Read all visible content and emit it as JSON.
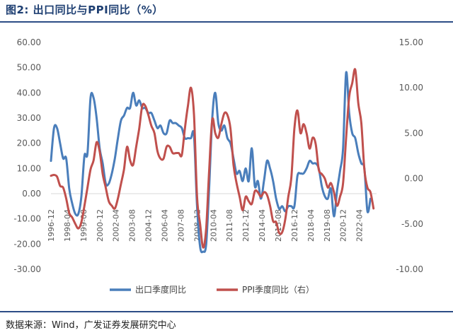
{
  "header": {
    "title": "图2:  出口同比与PPI同比（%）"
  },
  "footer": {
    "source": "数据来源：Wind，广发证券发展研究中心"
  },
  "colors": {
    "export": "#4a7ebb",
    "ppi": "#c0504d",
    "rule": "#2c4d86"
  },
  "chart_data": {
    "type": "line",
    "title": "出口同比与PPI同比（%）",
    "x_ticks": [
      "1996-12",
      "1998-04",
      "1999-08",
      "2000-12",
      "2002-04",
      "2003-08",
      "2004-12",
      "2006-04",
      "2007-08",
      "2008-12",
      "2010-04",
      "2011-08",
      "2012-12",
      "2014-04",
      "2015-08",
      "2016-12",
      "2018-04",
      "2019-08",
      "2020-12",
      "2022-04"
    ],
    "y_left": {
      "ticks": [
        "60.00",
        "50.00",
        "40.00",
        "30.00",
        "20.00",
        "10.00",
        "0.00",
        "-10.00",
        "-20.00",
        "-30.00"
      ],
      "ylim": [
        -30,
        60
      ]
    },
    "y_right": {
      "ticks": [
        "15.00",
        "10.00",
        "5.00",
        "0.00",
        "-5.00",
        "-10.00"
      ],
      "ylim": [
        -10,
        15
      ]
    },
    "legend_position": "bottom",
    "series": [
      {
        "name": "出口季度同比",
        "axis": "left",
        "points": [
          [
            "1996-12",
            13
          ],
          [
            "1997-03",
            26
          ],
          [
            "1997-06",
            26
          ],
          [
            "1997-09",
            20
          ],
          [
            "1997-12",
            14
          ],
          [
            "1998-03",
            14
          ],
          [
            "1998-06",
            2
          ],
          [
            "1998-09",
            -4
          ],
          [
            "1998-12",
            -8
          ],
          [
            "1999-03",
            -8
          ],
          [
            "1999-06",
            -1
          ],
          [
            "1999-09",
            15
          ],
          [
            "1999-12",
            16
          ],
          [
            "2000-03",
            38
          ],
          [
            "2000-06",
            38
          ],
          [
            "2000-09",
            30
          ],
          [
            "2000-12",
            18
          ],
          [
            "2001-03",
            12
          ],
          [
            "2001-06",
            4
          ],
          [
            "2001-09",
            4
          ],
          [
            "2001-12",
            8
          ],
          [
            "2002-03",
            14
          ],
          [
            "2002-06",
            22
          ],
          [
            "2002-09",
            29
          ],
          [
            "2002-12",
            31
          ],
          [
            "2003-03",
            34
          ],
          [
            "2003-06",
            34
          ],
          [
            "2003-09",
            40
          ],
          [
            "2003-12",
            35
          ],
          [
            "2004-03",
            37
          ],
          [
            "2004-06",
            34
          ],
          [
            "2004-09",
            34
          ],
          [
            "2004-12",
            32
          ],
          [
            "2005-03",
            32
          ],
          [
            "2005-06",
            29
          ],
          [
            "2005-09",
            26
          ],
          [
            "2005-12",
            27
          ],
          [
            "2006-03",
            24
          ],
          [
            "2006-06",
            24
          ],
          [
            "2006-09",
            29
          ],
          [
            "2006-12",
            28
          ],
          [
            "2007-03",
            28
          ],
          [
            "2007-06",
            27
          ],
          [
            "2007-09",
            26
          ],
          [
            "2007-12",
            22
          ],
          [
            "2008-03",
            22
          ],
          [
            "2008-06",
            22
          ],
          [
            "2008-09",
            23
          ],
          [
            "2008-12",
            -5
          ],
          [
            "2009-03",
            -21
          ],
          [
            "2009-06",
            -23
          ],
          [
            "2009-09",
            -20
          ],
          [
            "2009-12",
            3
          ],
          [
            "2010-03",
            30
          ],
          [
            "2010-06",
            40
          ],
          [
            "2010-09",
            28
          ],
          [
            "2010-12",
            25
          ],
          [
            "2011-03",
            27
          ],
          [
            "2011-06",
            22
          ],
          [
            "2011-09",
            20
          ],
          [
            "2011-12",
            14
          ],
          [
            "2012-03",
            8
          ],
          [
            "2012-06",
            9
          ],
          [
            "2012-09",
            5
          ],
          [
            "2012-12",
            10
          ],
          [
            "2013-03",
            5
          ],
          [
            "2013-06",
            18
          ],
          [
            "2013-09",
            3
          ],
          [
            "2013-12",
            5
          ],
          [
            "2014-03",
            -2
          ],
          [
            "2014-06",
            5
          ],
          [
            "2014-09",
            13
          ],
          [
            "2014-12",
            10
          ],
          [
            "2015-03",
            5
          ],
          [
            "2015-06",
            -2
          ],
          [
            "2015-09",
            -6
          ],
          [
            "2015-12",
            -5
          ],
          [
            "2016-03",
            -7
          ],
          [
            "2016-06",
            -5
          ],
          [
            "2016-09",
            -5
          ],
          [
            "2016-12",
            -5
          ],
          [
            "2017-03",
            7
          ],
          [
            "2017-06",
            8
          ],
          [
            "2017-09",
            8
          ],
          [
            "2017-12",
            10
          ],
          [
            "2018-03",
            13
          ],
          [
            "2018-06",
            12
          ],
          [
            "2018-09",
            12
          ],
          [
            "2018-12",
            10
          ],
          [
            "2019-03",
            3
          ],
          [
            "2019-06",
            -1
          ],
          [
            "2019-09",
            -2
          ],
          [
            "2019-12",
            2
          ],
          [
            "2020-03",
            -9
          ],
          [
            "2020-06",
            1
          ],
          [
            "2020-09",
            9
          ],
          [
            "2020-12",
            18
          ],
          [
            "2021-03",
            48
          ],
          [
            "2021-06",
            32
          ],
          [
            "2021-09",
            24
          ],
          [
            "2021-12",
            22
          ],
          [
            "2022-03",
            16
          ],
          [
            "2022-06",
            12
          ],
          [
            "2022-09",
            10
          ],
          [
            "2022-12",
            -7
          ],
          [
            "2023-03",
            -2
          ]
        ]
      },
      {
        "name": "PPI季度同比（右）",
        "axis": "right",
        "points": [
          [
            "1996-12",
            0.3
          ],
          [
            "1997-03",
            0.4
          ],
          [
            "1997-06",
            0.2
          ],
          [
            "1997-09",
            -0.8
          ],
          [
            "1997-12",
            -1.0
          ],
          [
            "1998-03",
            -2.2
          ],
          [
            "1998-06",
            -3.8
          ],
          [
            "1998-09",
            -4.3
          ],
          [
            "1998-12",
            -5.0
          ],
          [
            "1999-03",
            -5.5
          ],
          [
            "1999-06",
            -4.8
          ],
          [
            "1999-09",
            -3.0
          ],
          [
            "1999-12",
            -1.0
          ],
          [
            "2000-03",
            1.0
          ],
          [
            "2000-06",
            2.0
          ],
          [
            "2000-09",
            4.0
          ],
          [
            "2000-12",
            3.0
          ],
          [
            "2001-03",
            0.5
          ],
          [
            "2001-06",
            -1.0
          ],
          [
            "2001-09",
            -2.5
          ],
          [
            "2001-12",
            -3.0
          ],
          [
            "2002-03",
            -3.3
          ],
          [
            "2002-06",
            -2.2
          ],
          [
            "2002-09",
            -0.6
          ],
          [
            "2002-12",
            1.0
          ],
          [
            "2003-03",
            3.5
          ],
          [
            "2003-06",
            2.0
          ],
          [
            "2003-09",
            1.5
          ],
          [
            "2003-12",
            3.5
          ],
          [
            "2004-03",
            5.5
          ],
          [
            "2004-06",
            8.0
          ],
          [
            "2004-09",
            8.0
          ],
          [
            "2004-12",
            7.0
          ],
          [
            "2005-03",
            5.8
          ],
          [
            "2005-06",
            5.0
          ],
          [
            "2005-09",
            3.0
          ],
          [
            "2005-12",
            2.2
          ],
          [
            "2006-03",
            2.2
          ],
          [
            "2006-06",
            3.5
          ],
          [
            "2006-09",
            3.5
          ],
          [
            "2006-12",
            2.8
          ],
          [
            "2007-03",
            2.8
          ],
          [
            "2007-06",
            2.8
          ],
          [
            "2007-09",
            2.6
          ],
          [
            "2007-12",
            5.5
          ],
          [
            "2008-03",
            8.0
          ],
          [
            "2008-06",
            10.0
          ],
          [
            "2008-09",
            7.0
          ],
          [
            "2008-12",
            -2.0
          ],
          [
            "2009-03",
            -5.0
          ],
          [
            "2009-06",
            -7.6
          ],
          [
            "2009-09",
            -5.5
          ],
          [
            "2009-12",
            1.0
          ],
          [
            "2010-03",
            6.5
          ],
          [
            "2010-06",
            5.0
          ],
          [
            "2010-09",
            4.5
          ],
          [
            "2010-12",
            6.0
          ],
          [
            "2011-03",
            7.2
          ],
          [
            "2011-06",
            7.0
          ],
          [
            "2011-09",
            5.5
          ],
          [
            "2011-12",
            1.5
          ],
          [
            "2012-03",
            -0.5
          ],
          [
            "2012-06",
            -2.0
          ],
          [
            "2012-09",
            -3.5
          ],
          [
            "2012-12",
            -2.0
          ],
          [
            "2013-03",
            -2.5
          ],
          [
            "2013-06",
            -2.8
          ],
          [
            "2013-09",
            -1.4
          ],
          [
            "2013-12",
            -1.5
          ],
          [
            "2014-03",
            -2.0
          ],
          [
            "2014-06",
            -1.5
          ],
          [
            "2014-09",
            -1.8
          ],
          [
            "2014-12",
            -3.0
          ],
          [
            "2015-03",
            -4.7
          ],
          [
            "2015-06",
            -4.8
          ],
          [
            "2015-09",
            -6.0
          ],
          [
            "2015-12",
            -5.9
          ],
          [
            "2016-03",
            -4.5
          ],
          [
            "2016-06",
            -2.0
          ],
          [
            "2016-09",
            0.1
          ],
          [
            "2016-12",
            5.5
          ],
          [
            "2017-03",
            7.5
          ],
          [
            "2017-06",
            5.0
          ],
          [
            "2017-09",
            6.0
          ],
          [
            "2017-12",
            5.0
          ],
          [
            "2018-03",
            3.3
          ],
          [
            "2018-06",
            4.5
          ],
          [
            "2018-09",
            3.8
          ],
          [
            "2018-12",
            1.0
          ],
          [
            "2019-03",
            0.5
          ],
          [
            "2019-06",
            0.0
          ],
          [
            "2019-09",
            -1.0
          ],
          [
            "2019-12",
            -0.5
          ],
          [
            "2020-03",
            -1.5
          ],
          [
            "2020-06",
            -3.0
          ],
          [
            "2020-09",
            -2.0
          ],
          [
            "2020-12",
            -0.5
          ],
          [
            "2021-03",
            4.5
          ],
          [
            "2021-06",
            9.0
          ],
          [
            "2021-09",
            10.5
          ],
          [
            "2021-12",
            12.0
          ],
          [
            "2022-03",
            8.3
          ],
          [
            "2022-06",
            6.1
          ],
          [
            "2022-09",
            1.0
          ],
          [
            "2022-12",
            -1.0
          ],
          [
            "2023-03",
            -1.5
          ],
          [
            "2023-06",
            -3.3
          ]
        ]
      }
    ]
  }
}
